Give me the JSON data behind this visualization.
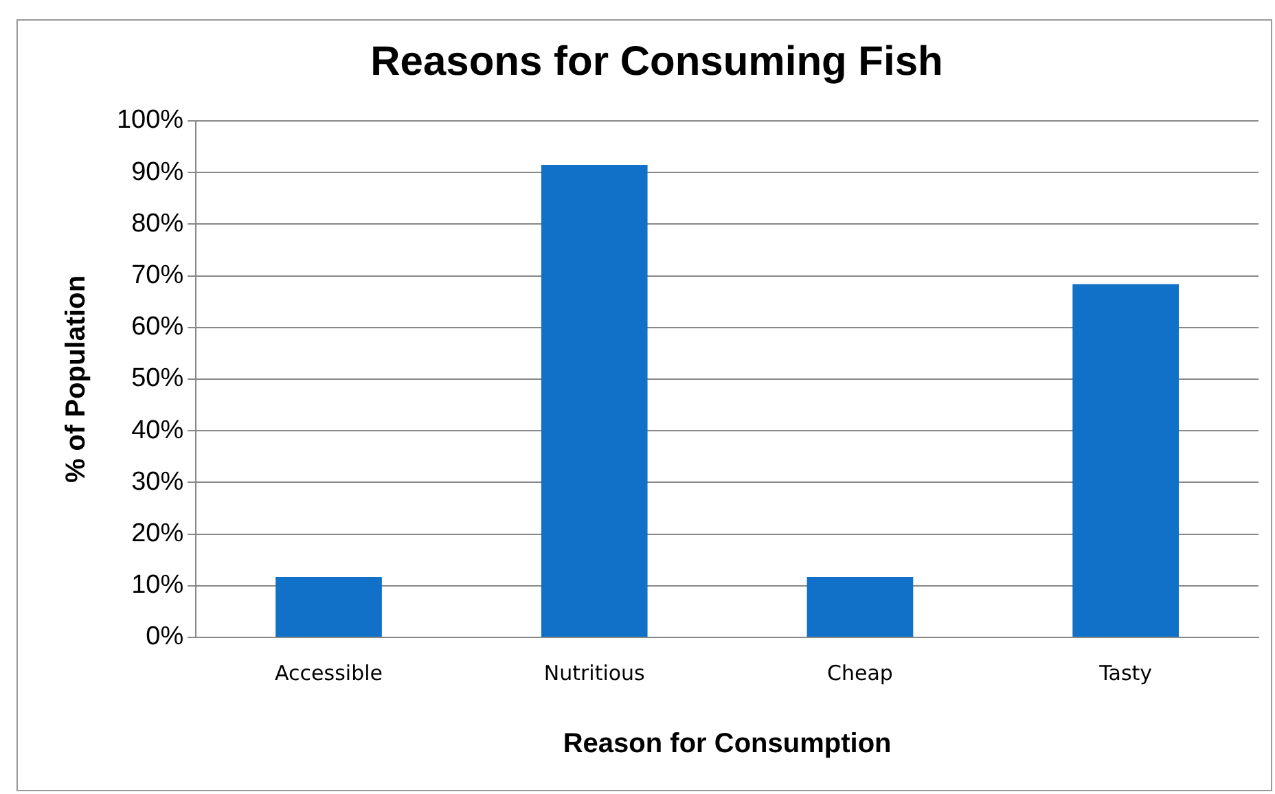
{
  "chart_data": {
    "type": "bar",
    "title": "Reasons for Consuming Fish",
    "xlabel": "Reason for Consumption",
    "ylabel": "% of Population",
    "categories": [
      "Accessible",
      "Nutritious",
      "Cheap",
      "Tasty"
    ],
    "values": [
      11.7,
      91.5,
      11.7,
      68.4
    ],
    "color": "#1170c8",
    "ylim": [
      0,
      100
    ],
    "yticks": [
      {
        "value": 0,
        "label": "0%"
      },
      {
        "value": 10,
        "label": "10%"
      },
      {
        "value": 20,
        "label": "20%"
      },
      {
        "value": 30,
        "label": "30%"
      },
      {
        "value": 40,
        "label": "40%"
      },
      {
        "value": 50,
        "label": "50%"
      },
      {
        "value": 60,
        "label": "60%"
      },
      {
        "value": 70,
        "label": "70%"
      },
      {
        "value": 80,
        "label": "80%"
      },
      {
        "value": 90,
        "label": "90%"
      },
      {
        "value": 100,
        "label": "100%"
      }
    ],
    "grid": "y",
    "legend": false
  }
}
